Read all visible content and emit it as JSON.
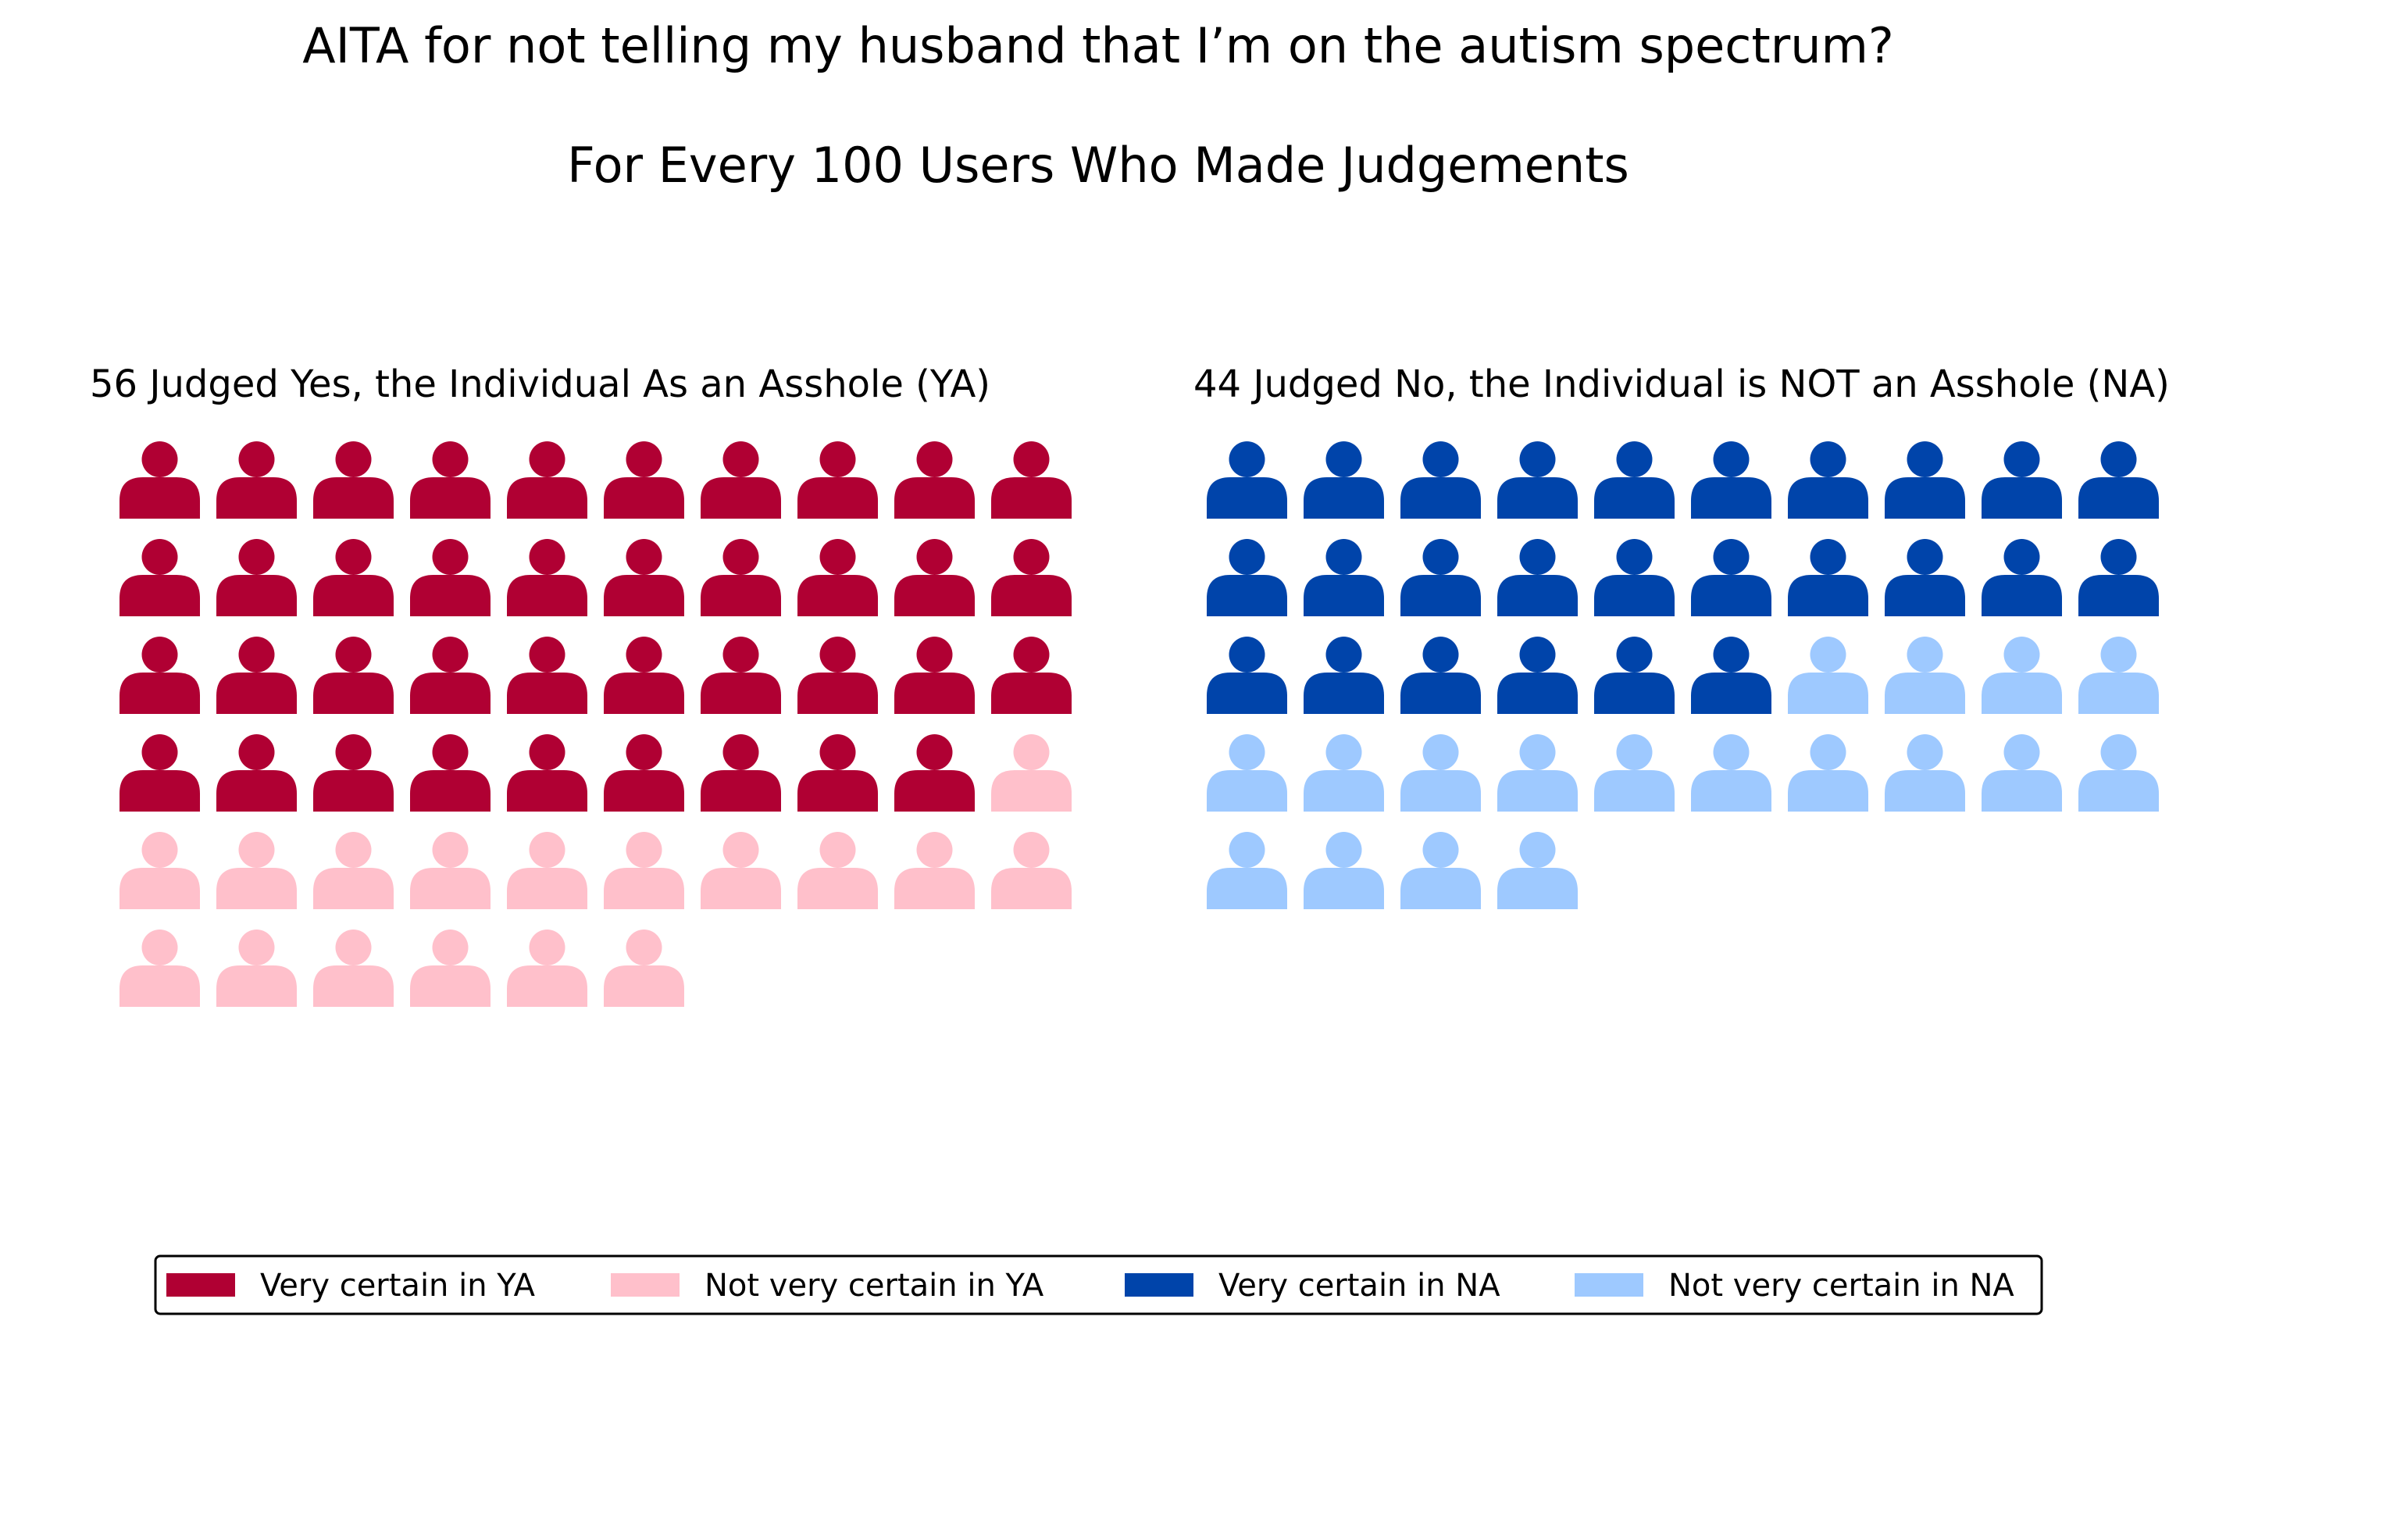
{
  "chart_data": {
    "type": "waffle-pictogram",
    "title": "AITA for not telling my husband that I’m on the autism spectrum?",
    "subtitle": "For Every 100 Users Who Made Judgements",
    "icon": "person-icon",
    "columns_per_row": 10,
    "panels": [
      {
        "title": "56 Judged Yes, the Individual As an Asshole (YA)",
        "total": 56,
        "segments": [
          {
            "name": "Very certain in YA",
            "count": 39,
            "color": "#b00033"
          },
          {
            "name": "Not very certain in YA",
            "count": 17,
            "color": "#ffc0cb"
          }
        ]
      },
      {
        "title": "44 Judged No, the Individual is NOT an Asshole (NA)",
        "total": 44,
        "segments": [
          {
            "name": "Very certain in NA",
            "count": 26,
            "color": "#0044aa"
          },
          {
            "name": "Not very certain in NA",
            "count": 18,
            "color": "#9ec9ff"
          }
        ]
      }
    ],
    "legend": {
      "placement": "bottom",
      "entries": [
        {
          "label": "Very certain in YA",
          "color": "#b00033"
        },
        {
          "label": "Not very certain in YA",
          "color": "#ffc0cb"
        },
        {
          "label": "Very certain in NA",
          "color": "#0044aa"
        },
        {
          "label": "Not very certain in NA",
          "color": "#9ec9ff"
        }
      ]
    }
  }
}
